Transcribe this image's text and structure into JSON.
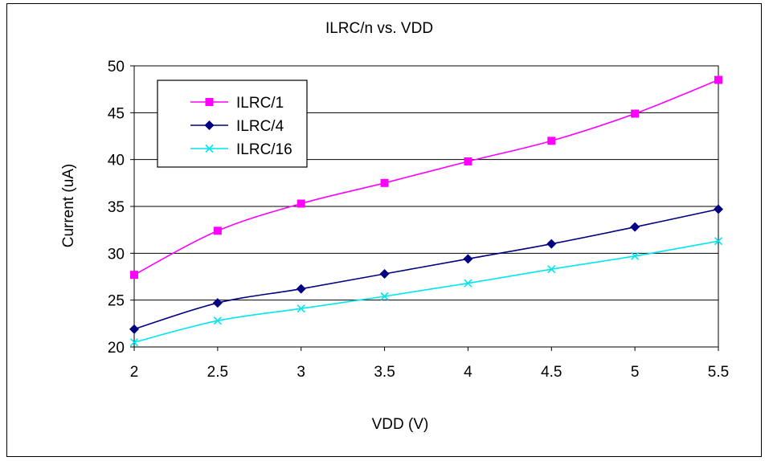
{
  "chart_data": {
    "type": "line",
    "title": "ILRC/n vs. VDD",
    "xlabel": "VDD (V)",
    "ylabel": "Current (uA)",
    "x": [
      2,
      2.5,
      3,
      3.5,
      4,
      4.5,
      5,
      5.5
    ],
    "x_tick_labels": [
      "2",
      "2.5",
      "3",
      "3.5",
      "4",
      "4.5",
      "5",
      "5.5"
    ],
    "y_tick_labels": [
      "20",
      "25",
      "30",
      "35",
      "40",
      "45",
      "50"
    ],
    "xlim": [
      2,
      5.5
    ],
    "ylim": [
      20,
      50
    ],
    "grid": "horizontal",
    "legend_position": "top-left",
    "series": [
      {
        "name": "ILRC/1",
        "color": "#ff00ff",
        "marker": "square",
        "values": [
          27.7,
          32.4,
          35.3,
          37.5,
          39.8,
          42.0,
          44.9,
          48.5
        ]
      },
      {
        "name": "ILRC/4",
        "color": "#000080",
        "marker": "diamond",
        "values": [
          21.9,
          24.7,
          26.2,
          27.8,
          29.4,
          31.0,
          32.8,
          34.7
        ]
      },
      {
        "name": "ILRC/16",
        "color": "#00e5ee",
        "marker": "x",
        "values": [
          20.5,
          22.8,
          24.1,
          25.4,
          26.8,
          28.3,
          29.7,
          31.3
        ]
      }
    ]
  }
}
